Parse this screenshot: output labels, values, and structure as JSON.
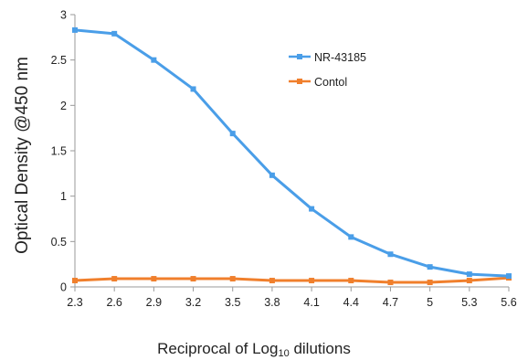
{
  "chart_data": {
    "type": "line",
    "title": "",
    "xlabel": "Reciprocal of Log10 dilutions",
    "xlabel_main": "Reciprocal of Log",
    "xlabel_sub": "10",
    "xlabel_tail": " dilutions",
    "ylabel": "Optical Density @450 nm",
    "categories": [
      "2.3",
      "2.6",
      "2.9",
      "3.2",
      "3.5",
      "3.8",
      "4.1",
      "4.4",
      "4.7",
      "5",
      "5.3",
      "5.6"
    ],
    "x": [
      2.3,
      2.6,
      2.9,
      3.2,
      3.5,
      3.8,
      4.1,
      4.4,
      4.7,
      5.0,
      5.3,
      5.6
    ],
    "ylim": [
      0,
      3
    ],
    "yticks": [
      "0",
      "0.5",
      "1",
      "1.5",
      "2",
      "2.5",
      "3"
    ],
    "ytick_values": [
      0,
      0.5,
      1,
      1.5,
      2,
      2.5,
      3
    ],
    "grid": false,
    "legend": "top-right",
    "series": [
      {
        "name": "NR-43185",
        "color": "#4a9ee8",
        "values": [
          2.83,
          2.79,
          2.5,
          2.18,
          1.69,
          1.23,
          0.86,
          0.55,
          0.36,
          0.22,
          0.14,
          0.12
        ]
      },
      {
        "name": "Contol",
        "color": "#f07f2c",
        "values": [
          0.07,
          0.09,
          0.09,
          0.09,
          0.09,
          0.07,
          0.07,
          0.07,
          0.05,
          0.05,
          0.07,
          0.1
        ]
      }
    ]
  }
}
